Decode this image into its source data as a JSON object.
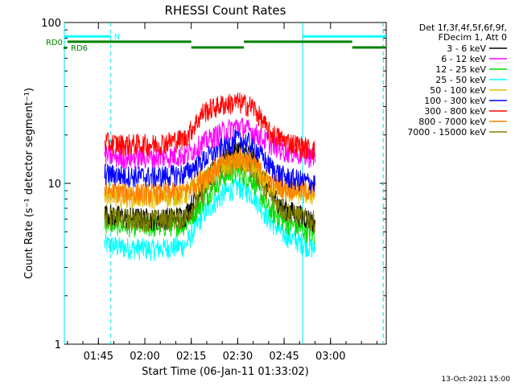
{
  "chart_data": {
    "type": "line",
    "title": "RHESSI Count Rates",
    "xlabel": "Start Time (06-Jan-11 01:33:02)",
    "ylabel": "Count Rate (s⁻¹ detector segment⁻¹)",
    "y_scale": "log",
    "ylim": [
      1,
      100
    ],
    "y_ticks": [
      "1",
      "10",
      "100"
    ],
    "x_range_minutes": [
      1.0,
      105.0
    ],
    "x_ticks": [
      {
        "label": "01:45",
        "t": 12
      },
      {
        "label": "02:00",
        "t": 27
      },
      {
        "label": "02:15",
        "t": 42
      },
      {
        "label": "02:30",
        "t": 57
      },
      {
        "label": "02:45",
        "t": 72
      },
      {
        "label": "03:00",
        "t": 87
      }
    ],
    "legend_header": [
      "Det 1f,3f,4f,5f,6f,9f,",
      "FDecim 1, Att 0"
    ],
    "series": [
      {
        "name": "3 - 6 keV",
        "color": "#000000",
        "points": [
          [
            14,
            6.5
          ],
          [
            20,
            6.2
          ],
          [
            30,
            6.0
          ],
          [
            40,
            6.3
          ],
          [
            46,
            10
          ],
          [
            52,
            14
          ],
          [
            57,
            16.5
          ],
          [
            62,
            14.5
          ],
          [
            67,
            9
          ],
          [
            72,
            7
          ],
          [
            82,
            5.8
          ]
        ]
      },
      {
        "name": "6 - 12 keV",
        "color": "#ff00ff",
        "points": [
          [
            14,
            15
          ],
          [
            20,
            14.5
          ],
          [
            30,
            14.5
          ],
          [
            40,
            15
          ],
          [
            46,
            18
          ],
          [
            52,
            21
          ],
          [
            57,
            23
          ],
          [
            62,
            21
          ],
          [
            67,
            18
          ],
          [
            72,
            16
          ],
          [
            82,
            14.5
          ]
        ]
      },
      {
        "name": "12 - 25 keV",
        "color": "#00dd00",
        "points": [
          [
            14,
            5.8
          ],
          [
            20,
            5.5
          ],
          [
            30,
            5.4
          ],
          [
            40,
            5.6
          ],
          [
            46,
            8
          ],
          [
            52,
            11
          ],
          [
            57,
            12
          ],
          [
            62,
            10.5
          ],
          [
            67,
            7
          ],
          [
            72,
            5.8
          ],
          [
            82,
            4.8
          ]
        ]
      },
      {
        "name": "25 - 50 keV",
        "color": "#00ffff",
        "points": [
          [
            14,
            4.2
          ],
          [
            20,
            4.0
          ],
          [
            30,
            3.9
          ],
          [
            40,
            4.1
          ],
          [
            46,
            6.5
          ],
          [
            52,
            8.5
          ],
          [
            57,
            9.6
          ],
          [
            62,
            8.5
          ],
          [
            67,
            6
          ],
          [
            72,
            4.8
          ],
          [
            82,
            3.9
          ]
        ]
      },
      {
        "name": "50 - 100 keV",
        "color": "#e0c000",
        "points": [
          [
            14,
            8.5
          ],
          [
            20,
            8.3
          ],
          [
            30,
            8.2
          ],
          [
            40,
            8.5
          ],
          [
            46,
            10.5
          ],
          [
            52,
            12.5
          ],
          [
            57,
            13.5
          ],
          [
            62,
            12.5
          ],
          [
            67,
            10
          ],
          [
            72,
            9
          ],
          [
            82,
            8.5
          ]
        ]
      },
      {
        "name": "100 - 300 keV",
        "color": "#0000ff",
        "points": [
          [
            14,
            11.5
          ],
          [
            20,
            11.2
          ],
          [
            30,
            11
          ],
          [
            40,
            11.5
          ],
          [
            46,
            14
          ],
          [
            52,
            17
          ],
          [
            57,
            19
          ],
          [
            62,
            17.5
          ],
          [
            67,
            13
          ],
          [
            72,
            11
          ],
          [
            82,
            10
          ]
        ]
      },
      {
        "name": "300 - 800 keV",
        "color": "#ff0000",
        "points": [
          [
            14,
            18
          ],
          [
            20,
            17.5
          ],
          [
            30,
            17.5
          ],
          [
            40,
            19
          ],
          [
            46,
            28
          ],
          [
            52,
            31
          ],
          [
            57,
            32
          ],
          [
            62,
            30
          ],
          [
            67,
            21
          ],
          [
            72,
            18.5
          ],
          [
            82,
            16
          ]
        ]
      },
      {
        "name": "800 - 7000 keV",
        "color": "#ff8000",
        "points": [
          [
            14,
            9
          ],
          [
            20,
            8.8
          ],
          [
            30,
            8.6
          ],
          [
            40,
            9
          ],
          [
            46,
            11
          ],
          [
            52,
            13.5
          ],
          [
            57,
            14.5
          ],
          [
            62,
            13.5
          ],
          [
            67,
            10.5
          ],
          [
            72,
            9.5
          ],
          [
            82,
            9
          ]
        ]
      },
      {
        "name": "7000 - 15000 keV",
        "color": "#808000",
        "points": [
          [
            14,
            6.2
          ],
          [
            20,
            6.0
          ],
          [
            30,
            5.9
          ],
          [
            40,
            6.1
          ],
          [
            46,
            9
          ],
          [
            52,
            12.5
          ],
          [
            57,
            14
          ],
          [
            62,
            12.5
          ],
          [
            67,
            8.5
          ],
          [
            72,
            6.8
          ],
          [
            82,
            5.8
          ]
        ]
      }
    ],
    "segments": {
      "N": {
        "label": "N",
        "color": "#00ffff",
        "y": 82,
        "spans": [
          [
            1,
            16
          ],
          [
            78,
            105
          ]
        ]
      },
      "RD0": {
        "label": "RD0",
        "color": "#008000",
        "y": 76,
        "spans": [
          [
            2,
            42
          ],
          [
            42,
            59
          ],
          [
            59,
            94
          ],
          [
            94,
            105
          ]
        ],
        "y_alt": 70
      },
      "RD6": {
        "label": "RD6",
        "color": "#008000",
        "y": 70
      }
    },
    "vertical_lines": [
      {
        "t": 1,
        "style": "solid"
      },
      {
        "t": 16,
        "style": "dashed"
      },
      {
        "t": 78,
        "style": "solid"
      },
      {
        "t": 104,
        "style": "dashed"
      }
    ],
    "footer_timestamp": "13-Oct-2021 15:00"
  }
}
